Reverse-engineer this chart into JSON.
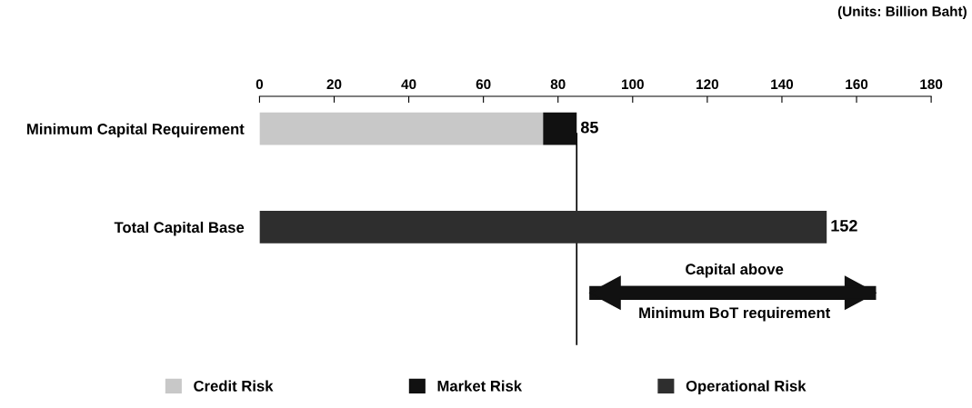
{
  "chart_data": {
    "type": "bar",
    "orientation": "horizontal",
    "stacked": true,
    "categories": [
      "Minimum Capital Requirement",
      "Total Capital Base"
    ],
    "series": [
      {
        "name": "Credit Risk",
        "color": "#c8c8c8",
        "values": [
          76,
          null
        ]
      },
      {
        "name": "Market Risk",
        "color": "#111111",
        "values": [
          9,
          null
        ]
      },
      {
        "name": "Operational Risk",
        "color": "#2e2e2e",
        "values": [
          null,
          152
        ]
      }
    ],
    "totals": [
      "85",
      "152"
    ],
    "xlim": [
      0,
      180
    ],
    "xticks": [
      0,
      20,
      40,
      60,
      80,
      100,
      120,
      140,
      160,
      180
    ],
    "ref_lines": [
      {
        "axis": "x",
        "value": 85,
        "color": "#000000",
        "line_style": "solid"
      }
    ],
    "annotations": [
      "(Units: Billion Baht)",
      "Capital above",
      "Minimum BoT requirement"
    ],
    "legend": "bottom",
    "grid": false
  }
}
